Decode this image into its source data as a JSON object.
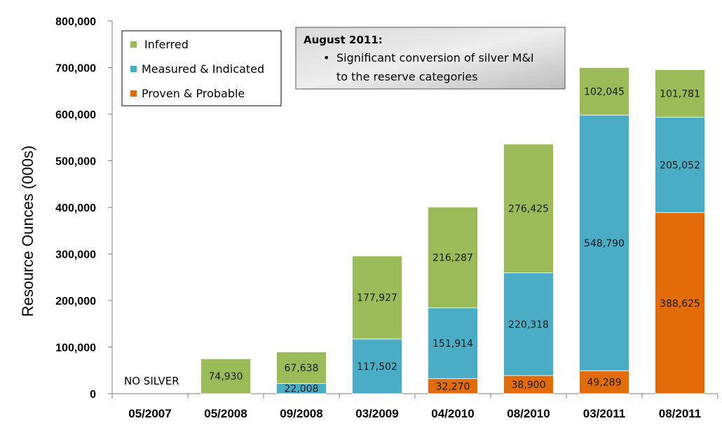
{
  "chart_data": {
    "type": "bar",
    "stacked": true,
    "categories": [
      "05/2007",
      "05/2008",
      "09/2008",
      "03/2009",
      "04/2010",
      "08/2010",
      "03/2011",
      "08/2011"
    ],
    "series": [
      {
        "name": "Proven & Probable",
        "color": "#E36C0A",
        "values": [
          0,
          0,
          0,
          0,
          32270,
          38900,
          49289,
          388625
        ],
        "labels": [
          "",
          "",
          "",
          "",
          "32,270",
          "38,900",
          "49,289",
          "388,625"
        ]
      },
      {
        "name": "Measured & Indicated",
        "color": "#4BACC6",
        "values": [
          0,
          0,
          22008,
          117502,
          151914,
          220318,
          548790,
          205052
        ],
        "labels": [
          "",
          "",
          "22,008",
          "117,502",
          "151,914",
          "220,318",
          "548,790",
          "205,052"
        ]
      },
      {
        "name": "Inferred",
        "color": "#9BBB59",
        "values": [
          0,
          74930,
          67638,
          177927,
          216287,
          276425,
          102045,
          101781
        ],
        "labels": [
          "",
          "74,930",
          "67,638",
          "177,927",
          "216,287",
          "276,425",
          "102,045",
          "101,781"
        ]
      }
    ],
    "ylabel": "Resource Ounces (000s)",
    "ylim": [
      0,
      800000
    ],
    "yticks": [
      "0",
      "100,000",
      "200,000",
      "300,000",
      "400,000",
      "500,000",
      "600,000",
      "700,000",
      "800,000"
    ],
    "grid": false,
    "legend": {
      "placement": "top-left",
      "order": [
        "Inferred",
        "Measured & Indicated",
        "Proven & Probable"
      ]
    },
    "annotations": {
      "no_data_label": "NO SILVER",
      "note_title": "August 2011:",
      "note_bullet": "•",
      "note_lines": [
        "Significant conversion of silver M&I",
        "to the reserve categories"
      ]
    }
  }
}
